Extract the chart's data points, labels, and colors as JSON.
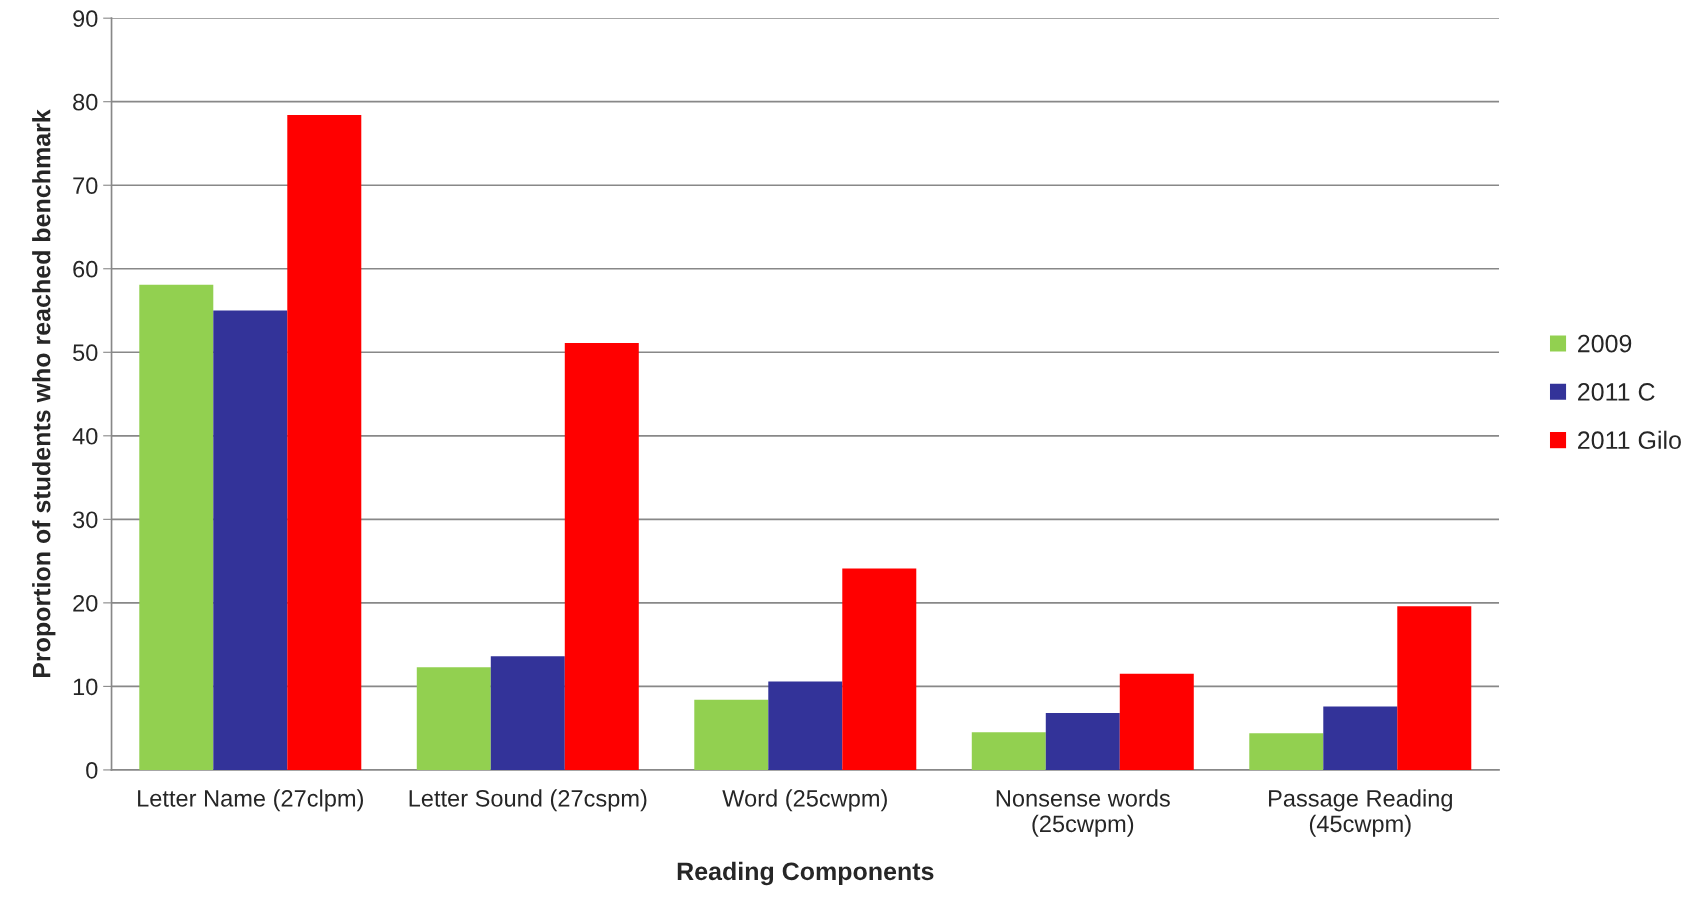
{
  "chart_data": {
    "type": "bar",
    "xlabel": "Reading Components",
    "ylabel": "Proportion of students who reached benchmark",
    "categories": [
      "Letter Name (27clpm)",
      "Letter Sound (27cspm)",
      "Word (25cwpm)",
      "Nonsense words\n(25cwpm)",
      "Passage Reading\n(45cwpm)"
    ],
    "series": [
      {
        "name": "2009",
        "color": "#92d050",
        "values": [
          58.1,
          12.3,
          8.4,
          4.5,
          4.4
        ]
      },
      {
        "name": "2011 C",
        "color": "#333399",
        "values": [
          55.0,
          13.6,
          10.6,
          6.8,
          7.6
        ]
      },
      {
        "name": "2011 Gilo",
        "color": "#ff0000",
        "values": [
          78.4,
          51.1,
          24.1,
          11.5,
          19.6
        ]
      }
    ],
    "ylim": [
      0,
      90
    ],
    "yticks": [
      0,
      10,
      20,
      30,
      40,
      50,
      60,
      70,
      80,
      90
    ],
    "grid": "y",
    "legend": "right"
  }
}
